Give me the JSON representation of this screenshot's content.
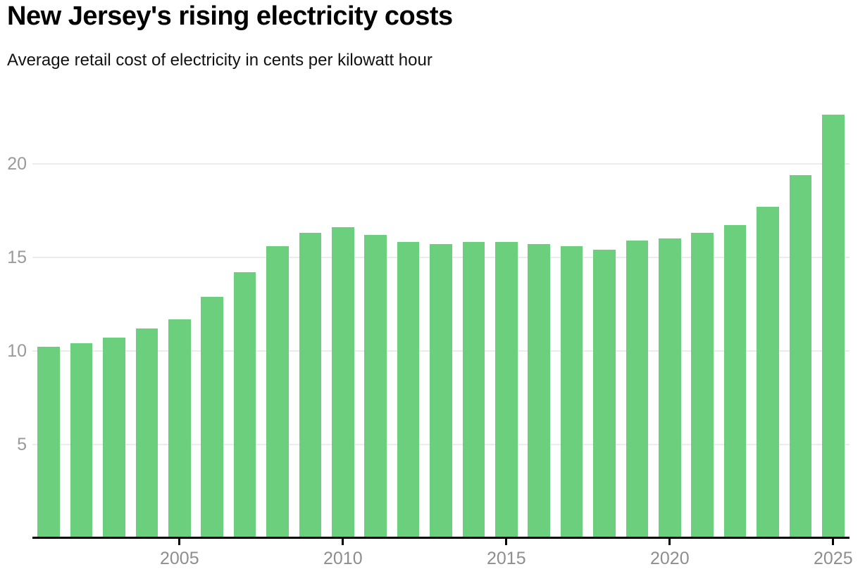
{
  "header": {
    "title": "New Jersey's rising electricity costs",
    "subtitle": "Average retail cost of electricity in cents per kilowatt hour"
  },
  "chart_data": {
    "type": "bar",
    "title": "New Jersey's rising electricity costs",
    "subtitle": "Average retail cost of electricity in cents per kilowatt hour",
    "unit": "cents per kilowatt hour",
    "x": [
      2001,
      2002,
      2003,
      2004,
      2005,
      2006,
      2007,
      2008,
      2009,
      2010,
      2011,
      2012,
      2013,
      2014,
      2015,
      2016,
      2017,
      2018,
      2019,
      2020,
      2021,
      2022,
      2023,
      2024,
      2025
    ],
    "values": [
      10.2,
      10.4,
      10.7,
      11.2,
      11.7,
      12.9,
      14.2,
      15.6,
      16.3,
      16.6,
      16.2,
      15.8,
      15.7,
      15.8,
      15.8,
      15.7,
      15.6,
      15.4,
      15.9,
      16.0,
      16.3,
      16.7,
      17.7,
      19.4,
      22.6
    ],
    "series_name": "Average retail cost (cents/kWh)",
    "ylim": [
      0,
      23.1
    ],
    "yticks": [
      5,
      10,
      15,
      20
    ],
    "xticks": [
      2005,
      2010,
      2015,
      2020,
      2025
    ],
    "grid": true,
    "legend": "none",
    "colors": {
      "bar": "#6CCF7E",
      "gridline": "#ECECEC",
      "axis_line": "#000000",
      "y_tick_label": "#9A9A9A",
      "x_tick_label": "#8E8E8E",
      "tick_mark": "#000000",
      "background": "#FFFFFF"
    }
  }
}
